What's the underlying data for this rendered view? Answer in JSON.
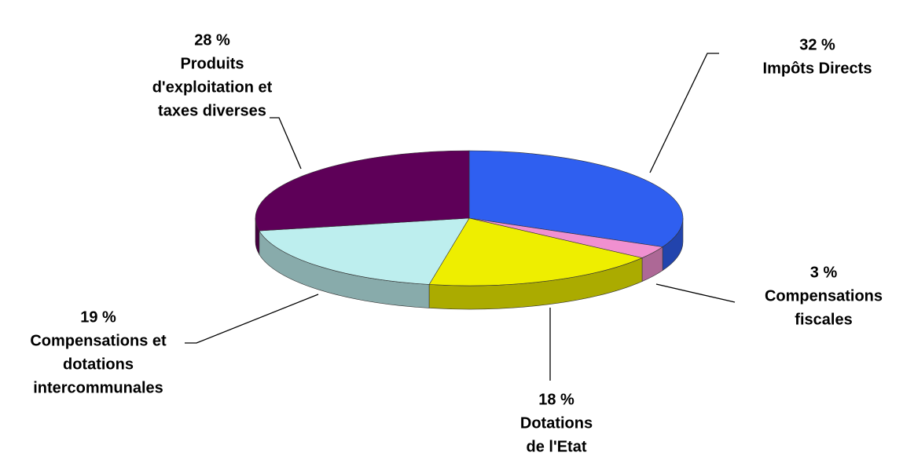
{
  "chart_data": {
    "type": "pie",
    "categories": [
      [
        "Impôts Directs"
      ],
      [
        "Compensations",
        "fiscales"
      ],
      [
        "Dotations",
        "de l'Etat"
      ],
      [
        "Compensations et",
        "dotations",
        "intercommunales"
      ],
      [
        "Produits",
        "d'exploitation et",
        "taxes diverses"
      ]
    ],
    "values": [
      32,
      3,
      18,
      19,
      28
    ],
    "value_labels": [
      "32 %",
      "3 %",
      "18 %",
      "19 %",
      "28 %"
    ],
    "colors": [
      "#2f5ff0",
      "#f090d0",
      "#eeee00",
      "#bdeeee",
      "#5e0058"
    ]
  }
}
